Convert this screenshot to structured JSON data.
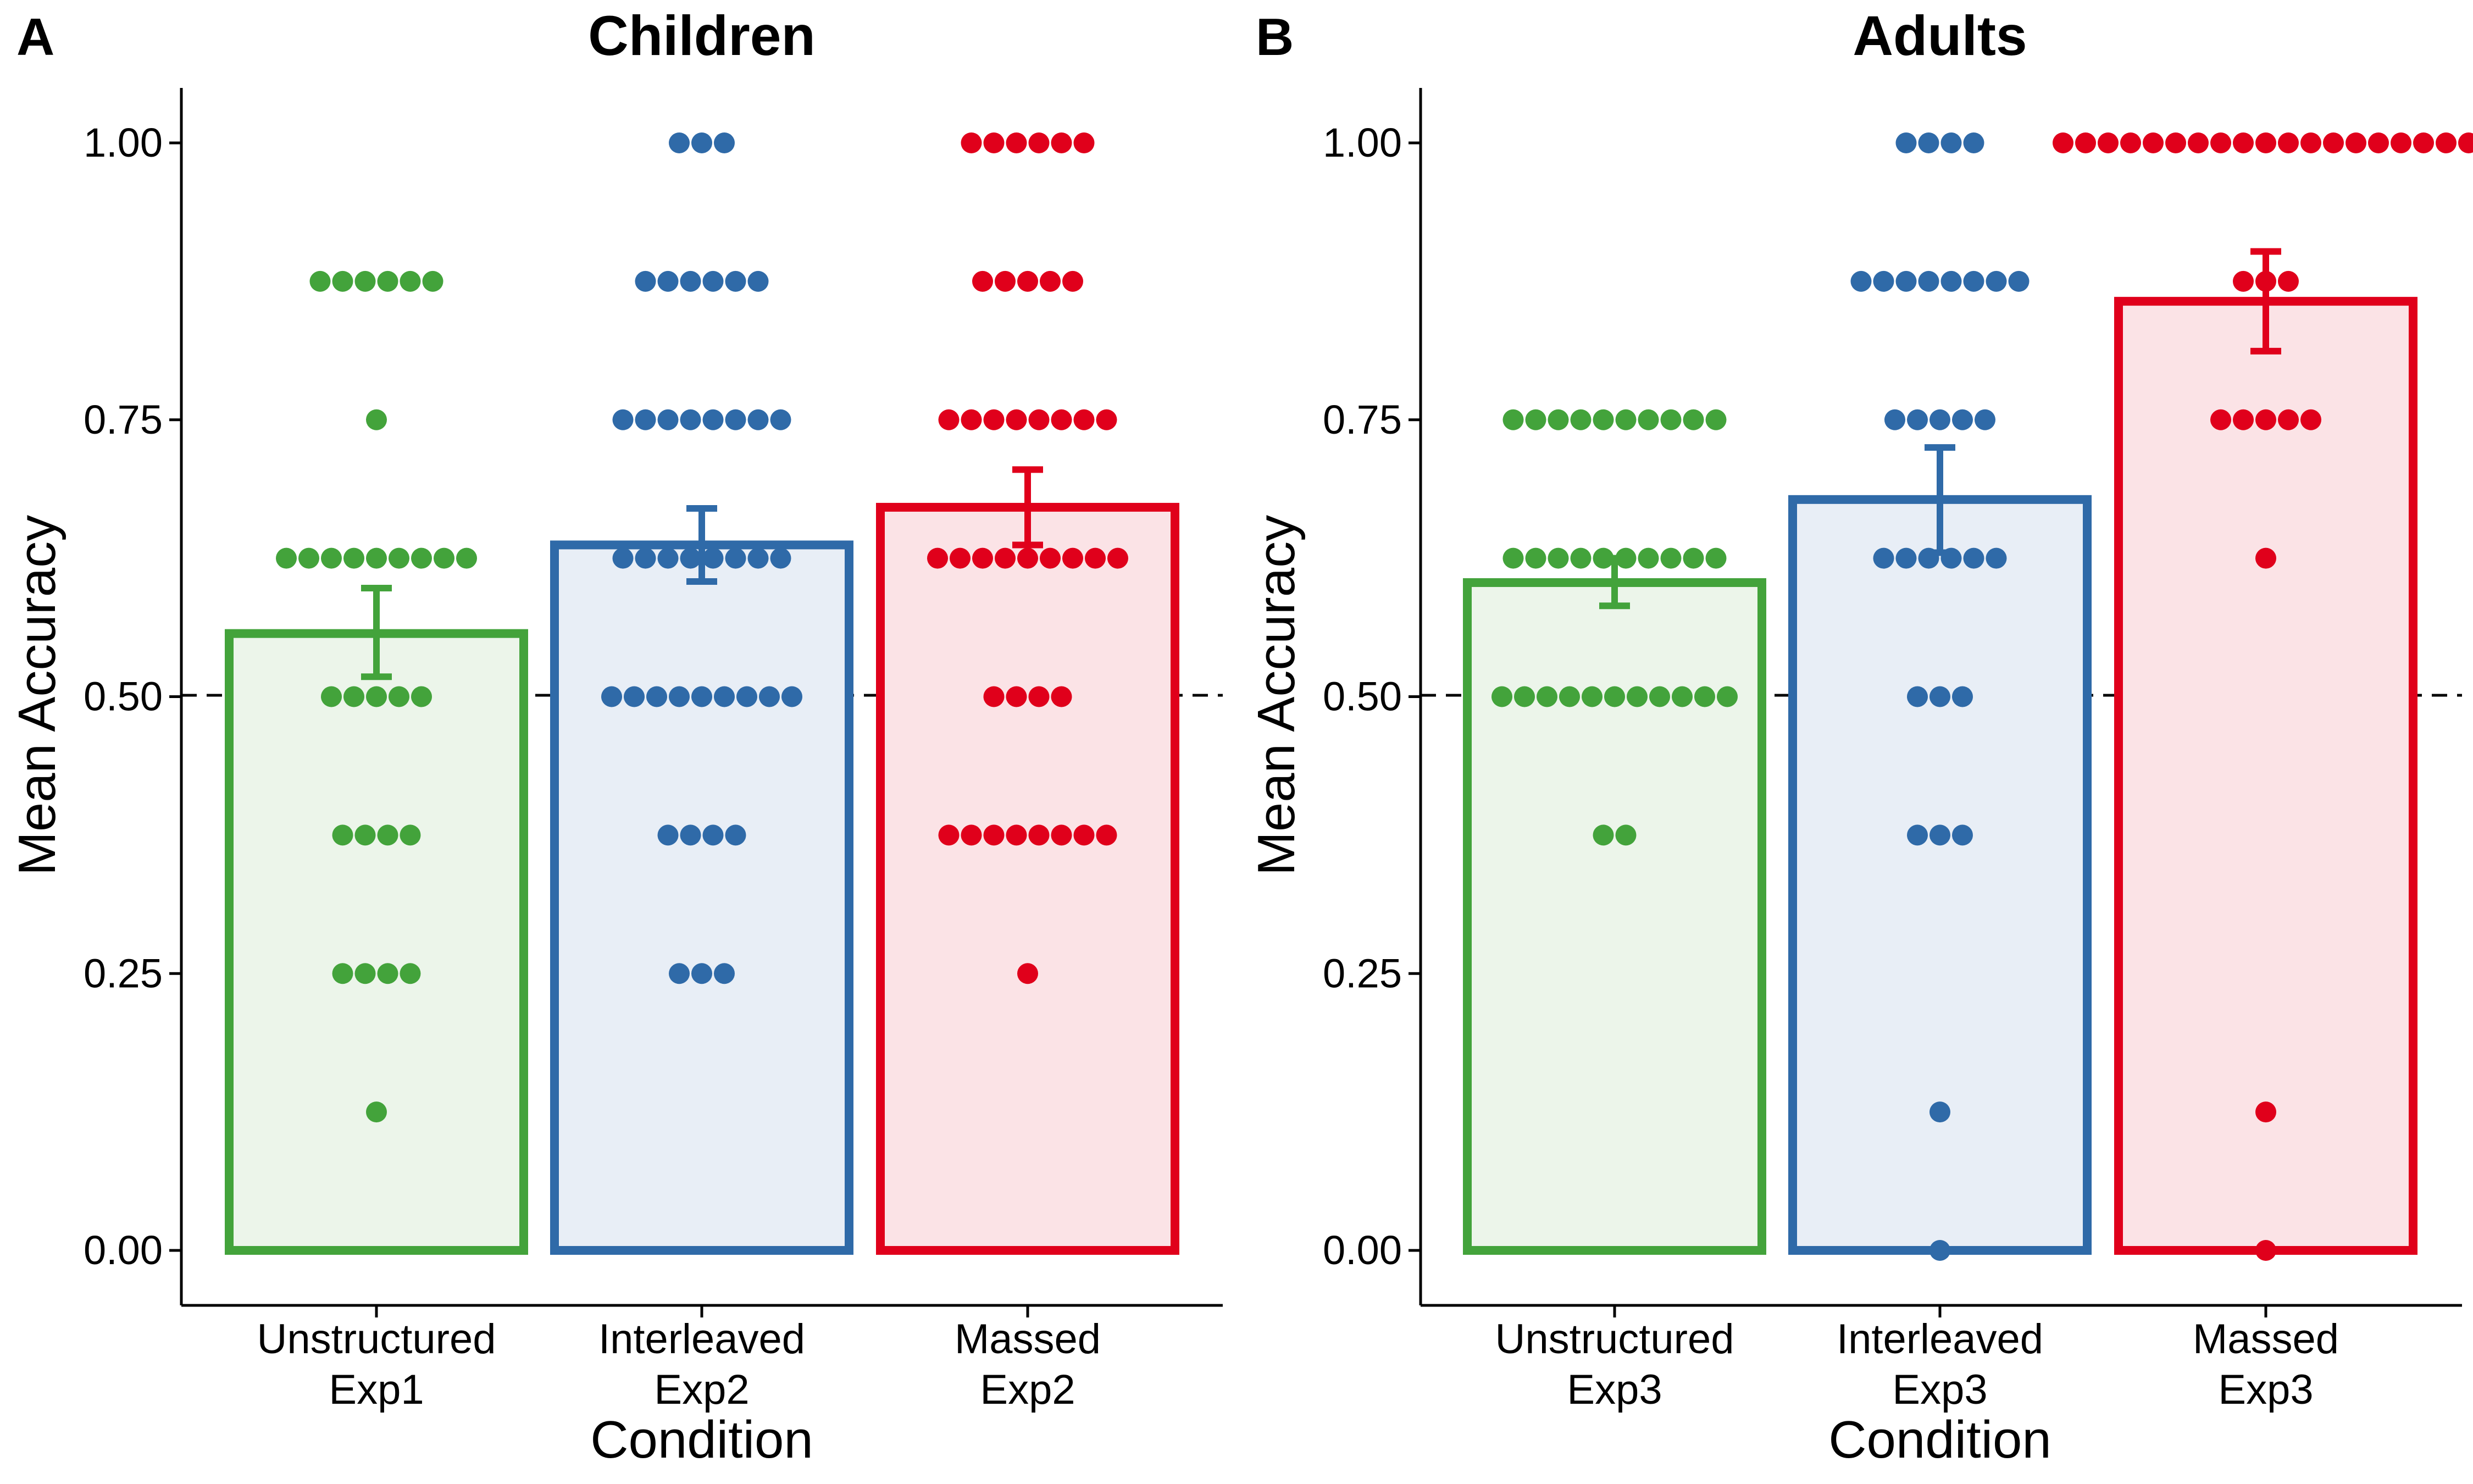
{
  "figure": {
    "panels": [
      {
        "letter": "A",
        "title": "Children",
        "ylabel": "Mean Accuracy",
        "xlabel": "Condition"
      },
      {
        "letter": "B",
        "title": "Adults",
        "ylabel": "Mean Accuracy",
        "xlabel": "Condition"
      }
    ]
  },
  "chart_data": [
    {
      "type": "bar",
      "title": "Children",
      "xlabel": "Condition",
      "ylabel": "Mean Accuracy",
      "ylim": [
        -0.05,
        1.05
      ],
      "yticks": [
        "0.00",
        "0.25",
        "0.50",
        "0.75",
        "1.00"
      ],
      "reference_line": {
        "y": 0.5,
        "style": "dashed"
      },
      "grid": false,
      "legend": "none",
      "categories": [
        [
          "Unstructured",
          "Exp1"
        ],
        [
          "Interleaved",
          "Exp2"
        ],
        [
          "Massed",
          "Exp2"
        ]
      ],
      "colors": [
        "#43a33b",
        "#2f6aa8",
        "#e0001b"
      ],
      "fill_colors": [
        "#ecf5ea",
        "#e8eef6",
        "#fbe3e6"
      ],
      "means": [
        0.557,
        0.637,
        0.671
      ],
      "error_low": [
        0.518,
        0.604,
        0.637
      ],
      "error_high": [
        0.598,
        0.67,
        0.705
      ],
      "points": [
        [
          {
            "y": 0.875,
            "n": 6
          },
          {
            "y": 0.75,
            "n": 1
          },
          {
            "y": 0.625,
            "n": 9
          },
          {
            "y": 0.5,
            "n": 5
          },
          {
            "y": 0.375,
            "n": 4
          },
          {
            "y": 0.25,
            "n": 4
          },
          {
            "y": 0.125,
            "n": 1
          }
        ],
        [
          {
            "y": 1.0,
            "n": 3
          },
          {
            "y": 0.875,
            "n": 6
          },
          {
            "y": 0.75,
            "n": 8
          },
          {
            "y": 0.625,
            "n": 8
          },
          {
            "y": 0.5,
            "n": 9
          },
          {
            "y": 0.375,
            "n": 4
          },
          {
            "y": 0.25,
            "n": 3
          }
        ],
        [
          {
            "y": 1.0,
            "n": 6
          },
          {
            "y": 0.875,
            "n": 5
          },
          {
            "y": 0.75,
            "n": 8
          },
          {
            "y": 0.625,
            "n": 9
          },
          {
            "y": 0.5,
            "n": 4
          },
          {
            "y": 0.375,
            "n": 8
          },
          {
            "y": 0.25,
            "n": 1
          }
        ]
      ]
    },
    {
      "type": "bar",
      "title": "Adults",
      "xlabel": "Condition",
      "ylabel": "Mean Accuracy",
      "ylim": [
        -0.05,
        1.05
      ],
      "yticks": [
        "0.00",
        "0.25",
        "0.50",
        "0.75",
        "1.00"
      ],
      "reference_line": {
        "y": 0.5,
        "style": "dashed"
      },
      "grid": false,
      "legend": "none",
      "categories": [
        [
          "Unstructured",
          "Exp3"
        ],
        [
          "Interleaved",
          "Exp3"
        ],
        [
          "Massed",
          "Exp3"
        ]
      ],
      "colors": [
        "#43a33b",
        "#2f6aa8",
        "#e0001b"
      ],
      "fill_colors": [
        "#ecf5ea",
        "#e8eef6",
        "#fbe3e6"
      ],
      "means": [
        0.603,
        0.678,
        0.857
      ],
      "error_low": [
        0.582,
        0.63,
        0.812
      ],
      "error_high": [
        0.625,
        0.725,
        0.902
      ],
      "points": [
        [
          {
            "y": 0.75,
            "n": 10
          },
          {
            "y": 0.625,
            "n": 10
          },
          {
            "y": 0.5,
            "n": 11
          },
          {
            "y": 0.375,
            "n": 2
          }
        ],
        [
          {
            "y": 1.0,
            "n": 4
          },
          {
            "y": 0.875,
            "n": 8
          },
          {
            "y": 0.75,
            "n": 5
          },
          {
            "y": 0.625,
            "n": 6
          },
          {
            "y": 0.5,
            "n": 3
          },
          {
            "y": 0.375,
            "n": 3
          },
          {
            "y": 0.125,
            "n": 1
          },
          {
            "y": 0.0,
            "n": 1
          }
        ],
        [
          {
            "y": 1.0,
            "n": 19
          },
          {
            "y": 0.875,
            "n": 3
          },
          {
            "y": 0.75,
            "n": 5
          },
          {
            "y": 0.625,
            "n": 1
          },
          {
            "y": 0.125,
            "n": 1
          },
          {
            "y": 0.0,
            "n": 1
          }
        ]
      ]
    }
  ]
}
